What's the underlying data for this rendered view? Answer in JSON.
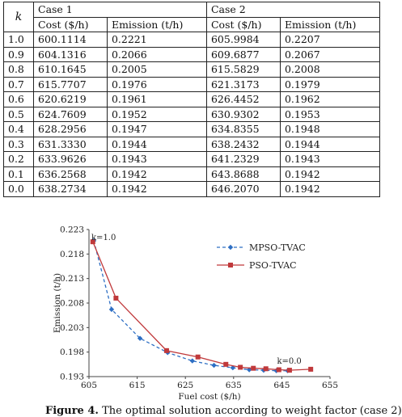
{
  "table": {
    "k_header": "k",
    "case1_header": "Case 1",
    "case2_header": "Case 2",
    "cost_header": "Cost ($/h)",
    "emission_header": "Emission (t/h)",
    "rows": [
      {
        "k": "1.0",
        "c1_cost": "600.1114",
        "c1_em": "0.2221",
        "c2_cost": "605.9984",
        "c2_em": "0.2207"
      },
      {
        "k": "0.9",
        "c1_cost": "604.1316",
        "c1_em": "0.2066",
        "c2_cost": "609.6877",
        "c2_em": "0.2067"
      },
      {
        "k": "0.8",
        "c1_cost": "610.1645",
        "c1_em": "0.2005",
        "c2_cost": "615.5829",
        "c2_em": "0.2008"
      },
      {
        "k": "0.7",
        "c1_cost": "615.7707",
        "c1_em": "0.1976",
        "c2_cost": "621.3173",
        "c2_em": "0.1979"
      },
      {
        "k": "0.6",
        "c1_cost": "620.6219",
        "c1_em": "0.1961",
        "c2_cost": "626.4452",
        "c2_em": "0.1962"
      },
      {
        "k": "0.5",
        "c1_cost": "624.7609",
        "c1_em": "0.1952",
        "c2_cost": "630.9302",
        "c2_em": "0.1953"
      },
      {
        "k": "0.4",
        "c1_cost": "628.2956",
        "c1_em": "0.1947",
        "c2_cost": "634.8355",
        "c2_em": "0.1948"
      },
      {
        "k": "0.3",
        "c1_cost": "631.3330",
        "c1_em": "0.1944",
        "c2_cost": "638.2432",
        "c2_em": "0.1944"
      },
      {
        "k": "0.2",
        "c1_cost": "633.9626",
        "c1_em": "0.1943",
        "c2_cost": "641.2329",
        "c2_em": "0.1943"
      },
      {
        "k": "0.1",
        "c1_cost": "636.2568",
        "c1_em": "0.1942",
        "c2_cost": "643.8688",
        "c2_em": "0.1942"
      },
      {
        "k": "0.0",
        "c1_cost": "638.2734",
        "c1_em": "0.1942",
        "c2_cost": "646.2070",
        "c2_em": "0.1942"
      }
    ]
  },
  "chart_data": {
    "type": "line",
    "xlabel": "Fuel cost ($/h)",
    "ylabel": "Emission (t/h)",
    "xlim": [
      605,
      655
    ],
    "ylim": [
      0.193,
      0.223
    ],
    "xticks": [
      "605",
      "615",
      "625",
      "635",
      "645",
      "655"
    ],
    "yticks": [
      "0.193",
      "0.198",
      "0.203",
      "0.208",
      "0.213",
      "0.218",
      "0.223"
    ],
    "annotations": [
      "k=1.0",
      "k=0.0"
    ],
    "legend_position": "top-right",
    "series": [
      {
        "name": "MPSO-TVAC",
        "color": "#2e6fc4",
        "style": "dashed",
        "marker": "diamond",
        "x": [
          605.9984,
          609.6877,
          615.5829,
          621.3173,
          626.4452,
          630.9302,
          634.8355,
          638.2432,
          641.2329,
          643.8688,
          646.207
        ],
        "y": [
          0.2207,
          0.2067,
          0.2008,
          0.1979,
          0.1962,
          0.1953,
          0.1948,
          0.1944,
          0.1943,
          0.1942,
          0.1942
        ]
      },
      {
        "name": "PSO-TVAC",
        "color": "#c0393b",
        "style": "solid",
        "marker": "square",
        "x": [
          605.8,
          610.6,
          621.1,
          627.6,
          633.4,
          636.4,
          639.1,
          641.7,
          644.4,
          646.6,
          651.0
        ],
        "y": [
          0.2205,
          0.209,
          0.1983,
          0.197,
          0.1955,
          0.1949,
          0.1947,
          0.1946,
          0.1944,
          0.1943,
          0.1945
        ]
      }
    ]
  },
  "caption": {
    "label": "Figure 4.",
    "text": "The optimal solution according to weight factor (case 2)"
  }
}
